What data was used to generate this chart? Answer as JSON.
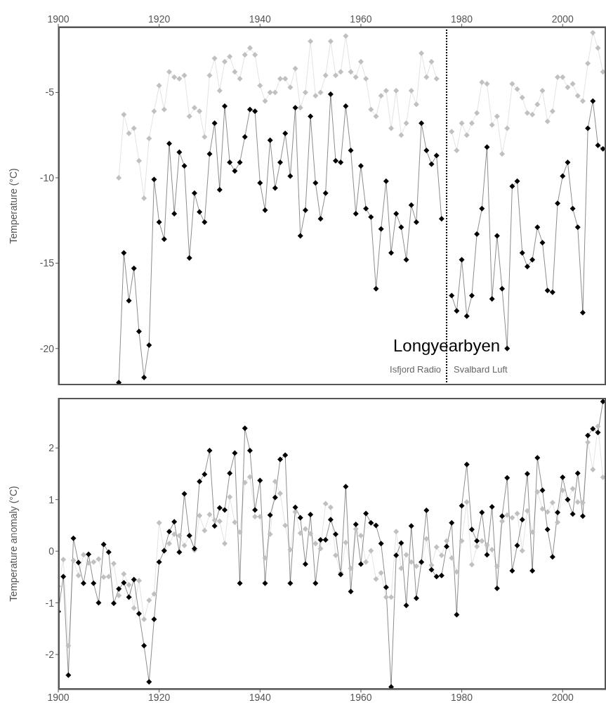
{
  "chart_data": [
    {
      "type": "line",
      "ylabel": "Temperature (°C)",
      "x2lim": [
        1900,
        2008.6
      ],
      "x2ticks": [
        1900,
        1920,
        1940,
        1960,
        1980,
        2000
      ],
      "xlim": [
        1900,
        2008.6
      ],
      "tick_labels": "y",
      "ylim": [
        -22.15,
        -1.15
      ],
      "yticks": [
        -20,
        -15,
        -10,
        -5
      ],
      "marker": "diamond",
      "line_style": "solid",
      "x": [
        1912,
        1913,
        1914,
        1915,
        1916,
        1917,
        1918,
        1919,
        1920,
        1921,
        1922,
        1923,
        1924,
        1925,
        1926,
        1927,
        1928,
        1929,
        1930,
        1931,
        1932,
        1933,
        1934,
        1935,
        1936,
        1937,
        1938,
        1939,
        1940,
        1941,
        1942,
        1943,
        1944,
        1945,
        1946,
        1947,
        1948,
        1949,
        1950,
        1951,
        1952,
        1953,
        1954,
        1955,
        1956,
        1957,
        1958,
        1959,
        1960,
        1961,
        1962,
        1963,
        1964,
        1965,
        1966,
        1967,
        1968,
        1969,
        1970,
        1971,
        1972,
        1973,
        1974,
        1975,
        1976,
        1977,
        1978,
        1979,
        1980,
        1981,
        1982,
        1983,
        1984,
        1985,
        1986,
        1987,
        1988,
        1989,
        1990,
        1991,
        1992,
        1993,
        1994,
        1995,
        1996,
        1997,
        1998,
        1999,
        2000,
        2001,
        2002,
        2003,
        2004,
        2005,
        2006,
        2007,
        2008
      ],
      "series": [
        {
          "color": "#c0c0c0",
          "values": [
            -10.0,
            -6.3,
            -7.4,
            -7.1,
            -9.0,
            -11.2,
            -7.7,
            -6.1,
            -4.6,
            -6.0,
            -3.8,
            -4.1,
            -4.2,
            -4.0,
            -6.4,
            -5.9,
            -6.1,
            -7.6,
            -4.0,
            -3.0,
            -4.9,
            -3.2,
            -2.9,
            -3.8,
            -4.2,
            -2.8,
            -2.4,
            -2.8,
            -4.6,
            -5.5,
            -5.0,
            -5.0,
            -4.2,
            -4.2,
            -4.7,
            -3.6,
            -5.9,
            -5.0,
            -2.0,
            -5.2,
            -5.0,
            -4.0,
            -2.0,
            -4.0,
            -3.8,
            -1.7,
            -3.8,
            -4.1,
            -3.2,
            -4.2,
            -6.0,
            -6.4,
            -5.2,
            -4.9,
            -7.1,
            -4.9,
            -7.5,
            -6.8,
            -4.9,
            -5.7,
            -2.7,
            -4.1,
            -3.2,
            -4.2,
            null,
            null,
            -7.3,
            -8.4,
            -6.8,
            -7.5,
            -6.8,
            -6.2,
            -4.4,
            -4.5,
            -6.9,
            -6.4,
            -8.6,
            -7.1,
            -4.5,
            -4.8,
            -5.3,
            -6.2,
            -6.3,
            -5.7,
            -4.9,
            -6.7,
            -6.1,
            -4.1,
            -4.1,
            -4.7,
            -4.5,
            -5.2,
            -5.5,
            -3.3,
            -1.5,
            -2.4,
            -3.8
          ]
        },
        {
          "color": "#000000",
          "values": [
            -22.0,
            -14.4,
            -17.2,
            -15.3,
            -19.0,
            -21.7,
            -19.8,
            -10.1,
            -12.6,
            -13.6,
            -8.0,
            -12.1,
            -8.5,
            -9.3,
            -14.7,
            -10.9,
            -12.0,
            -12.6,
            -8.6,
            -6.8,
            -10.7,
            -5.8,
            -9.1,
            -9.6,
            -9.1,
            -7.6,
            -6.0,
            -6.1,
            -10.3,
            -11.9,
            -7.8,
            -10.6,
            -9.1,
            -7.4,
            -9.9,
            -5.9,
            -13.4,
            -11.9,
            -6.4,
            -10.3,
            -12.4,
            -10.9,
            -5.1,
            -9.0,
            -9.1,
            -5.8,
            -8.4,
            -12.1,
            -9.3,
            -11.8,
            -12.3,
            -16.5,
            -13.0,
            -10.2,
            -14.4,
            -12.1,
            -12.9,
            -14.8,
            -11.6,
            -12.6,
            -6.8,
            -8.4,
            -9.2,
            -8.7,
            -12.4,
            null,
            -16.9,
            -17.8,
            -14.8,
            -18.1,
            -16.9,
            -13.3,
            -11.8,
            -8.2,
            -17.1,
            -13.4,
            -16.5,
            -20.0,
            -10.5,
            -10.2,
            -14.4,
            -15.2,
            -14.8,
            -12.9,
            -13.8,
            -16.6,
            -16.7,
            -11.5,
            -9.9,
            -9.1,
            -11.8,
            -12.9,
            -17.9,
            -7.1,
            -5.5,
            -8.1,
            -8.3
          ]
        }
      ],
      "ref_lines": [
        {
          "axis": "x",
          "value": 1977,
          "color": "#000000",
          "line_style": "dotted"
        }
      ],
      "annotations": [
        "Longyearbyen",
        "Isfjord Radio",
        "Svalbard Luft"
      ]
    },
    {
      "type": "line",
      "ylabel": "Temperature anomaly (°C)",
      "xlim": [
        1900,
        2008.6
      ],
      "xticks": [
        1900,
        1920,
        1940,
        1960,
        1980,
        2000
      ],
      "ylim": [
        -2.68,
        2.97
      ],
      "yticks": [
        -2,
        -1,
        0,
        1,
        2
      ],
      "marker": "diamond",
      "line_style": "solid",
      "x": [
        1900,
        1901,
        1902,
        1903,
        1904,
        1905,
        1906,
        1907,
        1908,
        1909,
        1910,
        1911,
        1912,
        1913,
        1914,
        1915,
        1916,
        1917,
        1918,
        1919,
        1920,
        1921,
        1922,
        1923,
        1924,
        1925,
        1926,
        1927,
        1928,
        1929,
        1930,
        1931,
        1932,
        1933,
        1934,
        1935,
        1936,
        1937,
        1938,
        1939,
        1940,
        1941,
        1942,
        1943,
        1944,
        1945,
        1946,
        1947,
        1948,
        1949,
        1950,
        1951,
        1952,
        1953,
        1954,
        1955,
        1956,
        1957,
        1958,
        1959,
        1960,
        1961,
        1962,
        1963,
        1964,
        1965,
        1966,
        1967,
        1968,
        1969,
        1970,
        1971,
        1972,
        1973,
        1974,
        1975,
        1976,
        1977,
        1978,
        1979,
        1980,
        1981,
        1982,
        1983,
        1984,
        1985,
        1986,
        1987,
        1988,
        1989,
        1990,
        1991,
        1992,
        1993,
        1994,
        1995,
        1996,
        1997,
        1998,
        1999,
        2000,
        2001,
        2002,
        2003,
        2004,
        2005,
        2006,
        2007,
        2008
      ],
      "series": [
        {
          "color": "#c0c0c0",
          "values": [
            -0.68,
            -0.16,
            -1.83,
            -0.18,
            -0.47,
            -0.07,
            -0.23,
            -0.21,
            -0.15,
            -0.5,
            -0.49,
            -0.24,
            -0.86,
            -0.44,
            -0.65,
            -1.1,
            -0.57,
            -1.32,
            -0.95,
            -0.83,
            0.55,
            0.02,
            0.15,
            0.33,
            0.3,
            0.11,
            0.3,
            0.02,
            0.69,
            0.4,
            0.71,
            0.6,
            0.58,
            0.15,
            1.05,
            0.56,
            0.37,
            1.33,
            1.44,
            0.67,
            0.67,
            -0.13,
            0.33,
            1.35,
            1.12,
            0.5,
            0.03,
            0.76,
            0.35,
            0.43,
            0.34,
            0.15,
            0.05,
            0.92,
            0.85,
            -0.08,
            -0.42,
            0.17,
            -0.33,
            0.43,
            0.3,
            -0.21,
            0.01,
            -0.54,
            -0.42,
            -0.89,
            -0.89,
            0.38,
            -0.33,
            -0.07,
            -0.21,
            -0.29,
            -0.22,
            0.24,
            -0.27,
            0.08,
            -0.08,
            0.2,
            -0.13,
            -0.4,
            0.2,
            0.95,
            -0.26,
            0.09,
            0.2,
            0.12,
            0.03,
            -0.29,
            0.58,
            0.7,
            0.65,
            0.73,
            0.01,
            0.78,
            0.37,
            1.15,
            0.82,
            0.76,
            0.94,
            0.56,
            1.18,
            1.0,
            1.21,
            0.95,
            0.94,
            2.11,
            1.58,
            2.42,
            1.43
          ]
        },
        {
          "color": "#000000",
          "values": [
            -1.17,
            -0.49,
            -2.4,
            0.25,
            -0.22,
            -0.62,
            -0.06,
            -0.62,
            -1.0,
            0.13,
            -0.02,
            -1.01,
            -0.73,
            -0.61,
            -0.89,
            -0.55,
            -1.21,
            -1.83,
            -2.53,
            -1.32,
            -0.21,
            0.01,
            0.38,
            0.57,
            -0.02,
            1.11,
            0.3,
            0.05,
            1.35,
            1.49,
            1.95,
            0.49,
            0.84,
            0.8,
            1.51,
            1.9,
            -0.62,
            2.38,
            1.95,
            0.8,
            1.37,
            -0.62,
            0.7,
            1.04,
            1.78,
            1.86,
            -0.62,
            0.85,
            0.65,
            -0.25,
            0.71,
            -0.62,
            0.22,
            0.22,
            0.61,
            0.33,
            -0.45,
            1.25,
            -0.78,
            0.52,
            -0.25,
            0.73,
            0.55,
            0.5,
            0.15,
            -0.7,
            -2.63,
            -0.08,
            0.16,
            -1.05,
            0.49,
            -0.91,
            -0.21,
            0.79,
            -0.36,
            -0.49,
            -0.47,
            0.09,
            0.55,
            -1.23,
            0.88,
            1.68,
            0.42,
            0.2,
            0.75,
            -0.07,
            0.86,
            -0.72,
            0.68,
            1.42,
            -0.38,
            0.11,
            0.61,
            1.5,
            -0.38,
            1.81,
            1.18,
            0.42,
            -0.11,
            0.75,
            1.43,
            1.0,
            0.72,
            1.51,
            0.68,
            2.24,
            2.37,
            2.3,
            2.9
          ]
        }
      ]
    }
  ]
}
